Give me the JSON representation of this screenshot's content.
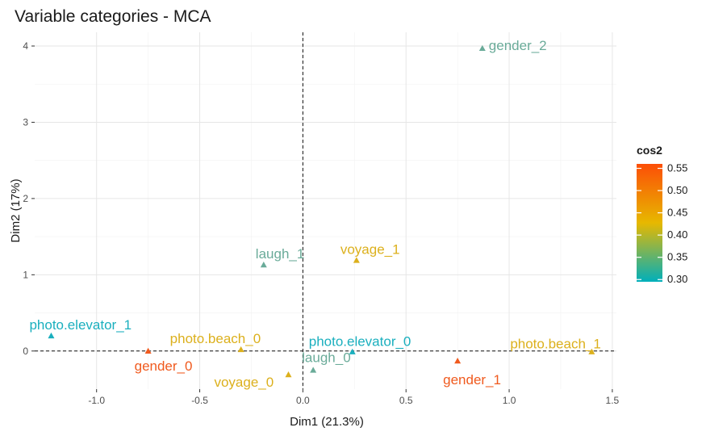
{
  "chart_data": {
    "type": "scatter",
    "title": "Variable categories - MCA",
    "xlabel": "Dim1 (21.3%)",
    "ylabel": "Dim2 (17%)",
    "xlim": [
      -1.3,
      1.52
    ],
    "ylim": [
      -0.5,
      4.18
    ],
    "x_ticks": [
      -1.0,
      -0.5,
      0.0,
      0.5,
      1.0,
      1.5
    ],
    "x_tick_labels": [
      "-1.0",
      "-0.5",
      "0.0",
      "0.5",
      "1.0",
      "1.5"
    ],
    "y_ticks": [
      0,
      1,
      2,
      3,
      4
    ],
    "y_tick_labels": [
      "0",
      "1",
      "2",
      "3",
      "4"
    ],
    "grid": true,
    "reference_lines": {
      "x": 0,
      "y": 0,
      "style": "dashed"
    },
    "marker": "triangle",
    "points": [
      {
        "label": "gender_2",
        "x": 0.87,
        "y": 3.97,
        "cos2": 0.33,
        "color": "#6aab99"
      },
      {
        "label": "voyage_1",
        "x": 0.26,
        "y": 1.19,
        "cos2": 0.42,
        "color": "#dcb01c"
      },
      {
        "label": "laugh_1",
        "x": -0.19,
        "y": 1.13,
        "cos2": 0.33,
        "color": "#6aab99"
      },
      {
        "label": "photo.elevator_1",
        "x": -1.22,
        "y": 0.2,
        "cos2": 0.3,
        "color": "#1aafbe"
      },
      {
        "label": "photo.beach_0",
        "x": -0.3,
        "y": 0.02,
        "cos2": 0.42,
        "color": "#dcb01c"
      },
      {
        "label": "gender_0",
        "x": -0.75,
        "y": 0.0,
        "cos2": 0.52,
        "color": "#f05a1e"
      },
      {
        "label": "photo.elevator_0",
        "x": 0.24,
        "y": -0.01,
        "cos2": 0.3,
        "color": "#1aafbe"
      },
      {
        "label": "laugh_0",
        "x": 0.05,
        "y": -0.25,
        "cos2": 0.33,
        "color": "#6aab99"
      },
      {
        "label": "voyage_0",
        "x": -0.07,
        "y": -0.31,
        "cos2": 0.42,
        "color": "#dcb01c"
      },
      {
        "label": "gender_1",
        "x": 0.75,
        "y": -0.13,
        "cos2": 0.52,
        "color": "#f05a1e"
      },
      {
        "label": "photo.beach_1",
        "x": 1.4,
        "y": -0.01,
        "cos2": 0.42,
        "color": "#dcb01c"
      }
    ],
    "legend": {
      "title": "cos2",
      "position": "right",
      "range": [
        0.295,
        0.56
      ],
      "tick_labels": [
        "0.55",
        "0.50",
        "0.45",
        "0.40",
        "0.35",
        "0.30"
      ],
      "tick_values": [
        0.55,
        0.5,
        0.45,
        0.4,
        0.35,
        0.3
      ],
      "gradient_colors": [
        "#00AFBB",
        "#E7B800",
        "#FC4E07"
      ]
    }
  }
}
